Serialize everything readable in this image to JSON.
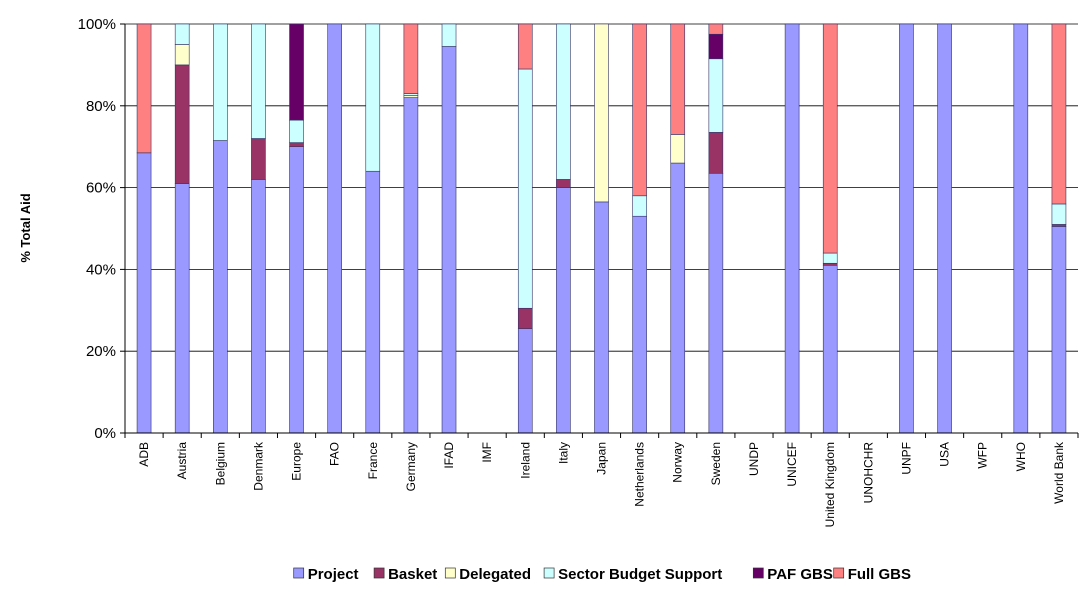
{
  "chart_data": {
    "type": "bar",
    "stacked": true,
    "ylabel": "% Total Aid",
    "xlabel": "",
    "title": "",
    "ylim": [
      0,
      100
    ],
    "yticks": [
      0,
      20,
      40,
      60,
      80,
      100
    ],
    "ytick_labels": [
      "0%",
      "20%",
      "40%",
      "60%",
      "80%",
      "100%"
    ],
    "grid": "horizontal",
    "legend_position": "bottom",
    "categories": [
      "ADB",
      "Austria",
      "Belgium",
      "Denmark",
      "Europe",
      "FAO",
      "France",
      "Germany",
      "IFAD",
      "IMF",
      "Ireland",
      "Italy",
      "Japan",
      "Netherlands",
      "Norway",
      "Sweden",
      "UNDP",
      "UNICEF",
      "United Kingdom",
      "UNOHCHR",
      "UNPF",
      "USA",
      "WFP",
      "WHO",
      "World Bank"
    ],
    "series": [
      {
        "name": "Project",
        "color": "#9999ff",
        "values": [
          68.5,
          61,
          71.5,
          62,
          70,
          100,
          64,
          82,
          94.5,
          0,
          25.5,
          60,
          56.5,
          53,
          66,
          63.5,
          0,
          100,
          41,
          0,
          100,
          100,
          0,
          100,
          50.5
        ]
      },
      {
        "name": "Basket",
        "color": "#993366",
        "values": [
          0,
          29,
          0,
          10,
          1,
          0,
          0,
          0,
          0,
          0,
          5,
          2,
          0,
          0,
          0,
          10,
          0,
          0,
          0.5,
          0,
          0,
          0,
          0,
          0,
          0.5
        ]
      },
      {
        "name": "Delegated",
        "color": "#ffffcc",
        "values": [
          0,
          5,
          0,
          0,
          0,
          0,
          0,
          0.5,
          0,
          0,
          0,
          0,
          43.5,
          0,
          7,
          0,
          0,
          0,
          0,
          0,
          0,
          0,
          0,
          0,
          0
        ]
      },
      {
        "name": "Sector Budget Support",
        "color": "#ccffff",
        "values": [
          0,
          5,
          28.5,
          28,
          5.5,
          0,
          36,
          0.5,
          5.5,
          0,
          58.5,
          38,
          0,
          5,
          0,
          18,
          0,
          0,
          2.5,
          0,
          0,
          0,
          0,
          0,
          5
        ]
      },
      {
        "name": "PAF GBS",
        "color": "#660066",
        "values": [
          0,
          0,
          0,
          0,
          23.5,
          0,
          0,
          0,
          0,
          0,
          0,
          0,
          0,
          0,
          0,
          6,
          0,
          0,
          0,
          0,
          0,
          0,
          0,
          0,
          0
        ]
      },
      {
        "name": "Full GBS",
        "color": "#ff8080",
        "values": [
          31.5,
          0,
          0,
          0,
          0,
          0,
          0,
          17,
          0,
          0,
          11,
          0,
          0,
          42,
          27,
          2.5,
          0,
          0,
          56,
          0,
          0,
          0,
          0,
          0,
          44
        ]
      }
    ]
  }
}
